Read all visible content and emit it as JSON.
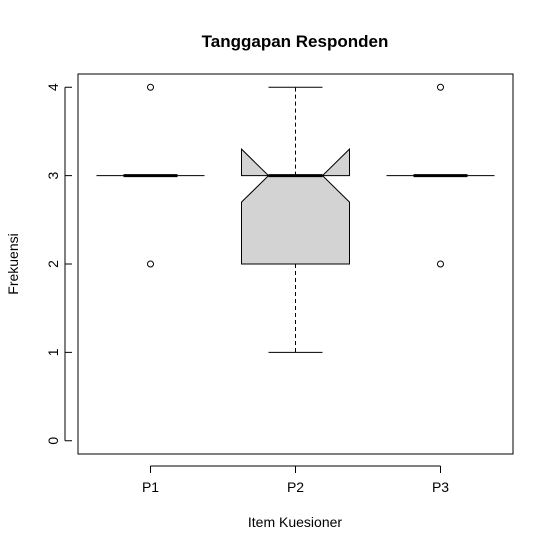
{
  "chart_data": {
    "type": "boxplot",
    "title": "Tanggapan Responden",
    "xlabel": "Item Kuesioner",
    "ylabel": "Frekuensi",
    "categories": [
      "P1",
      "P2",
      "P3"
    ],
    "ylim": [
      -0.15,
      4.15
    ],
    "yticks": [
      0,
      1,
      2,
      3,
      4
    ],
    "notch": true,
    "box_fill": "#d3d3d3",
    "boxes": [
      {
        "name": "P1",
        "min": 3,
        "q1": 3,
        "median": 3,
        "q3": 3,
        "max": 3,
        "notch_low": 3,
        "notch_high": 3,
        "outliers": [
          4,
          2
        ]
      },
      {
        "name": "P2",
        "min": 1,
        "q1": 2,
        "median": 3,
        "q3": 3,
        "max": 4,
        "notch_low": 2.7,
        "notch_high": 3.3,
        "outliers": []
      },
      {
        "name": "P3",
        "min": 3,
        "q1": 3,
        "median": 3,
        "q3": 3,
        "max": 3,
        "notch_low": 3,
        "notch_high": 3,
        "outliers": [
          4,
          2
        ]
      }
    ]
  }
}
